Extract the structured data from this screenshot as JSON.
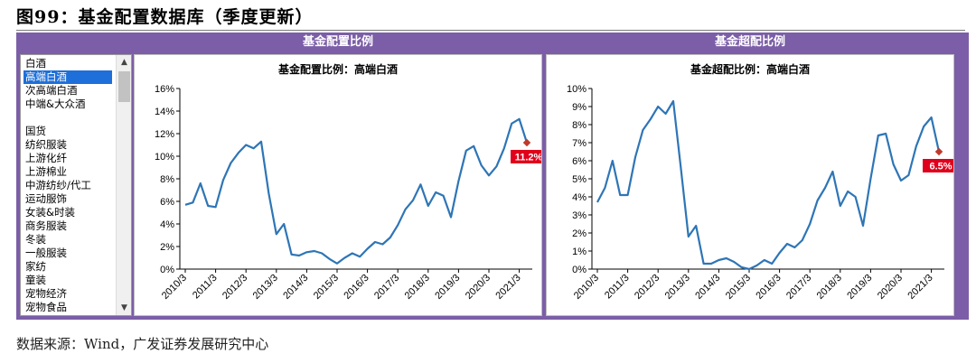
{
  "figure_title": "图99：基金配置数据库（季度更新）",
  "source": "数据来源：Wind，广发证券发展研究中心",
  "colors": {
    "frame": "#7B5EA7",
    "line": "#2E75B6",
    "label_bg": "#E0001B",
    "marker": "#C0392B",
    "selected": "#1E6FD9"
  },
  "left_panel_header": "基金配置比例",
  "right_panel_header": "基金超配比例",
  "listbox": {
    "items": [
      "白酒",
      "高端白酒",
      "次高端白酒",
      "中端&大众酒",
      "",
      "国货",
      "纺织服装",
      "上游化纤",
      "上游棉业",
      "中游纺纱/代工",
      "运动服饰",
      "女装&时装",
      "商务服装",
      "冬装",
      "一般服装",
      "家纺",
      "童装",
      "宠物经济",
      "宠物食品"
    ],
    "selected_index": 1
  },
  "chart_data": [
    {
      "type": "line",
      "title": "基金配置比例：高端白酒",
      "x": [
        "2010/3",
        "2010/6",
        "2010/9",
        "2010/12",
        "2011/3",
        "2011/6",
        "2011/9",
        "2011/12",
        "2012/3",
        "2012/6",
        "2012/9",
        "2012/12",
        "2013/3",
        "2013/6",
        "2013/9",
        "2013/12",
        "2014/3",
        "2014/6",
        "2014/9",
        "2014/12",
        "2015/3",
        "2015/6",
        "2015/9",
        "2015/12",
        "2016/3",
        "2016/6",
        "2016/9",
        "2016/12",
        "2017/3",
        "2017/6",
        "2017/9",
        "2017/12",
        "2018/3",
        "2018/6",
        "2018/9",
        "2018/12",
        "2019/3",
        "2019/6",
        "2019/9",
        "2019/12",
        "2020/3",
        "2020/6",
        "2020/9",
        "2020/12",
        "2021/3",
        "2021/6"
      ],
      "tick_labels": [
        "2010/3",
        "2011/3",
        "2012/3",
        "2013/3",
        "2014/3",
        "2015/3",
        "2016/3",
        "2017/3",
        "2018/3",
        "2019/3",
        "2020/3",
        "2021/3"
      ],
      "values": [
        5.7,
        5.9,
        7.6,
        5.6,
        5.5,
        7.9,
        9.4,
        10.3,
        11.0,
        10.7,
        11.3,
        6.7,
        3.1,
        4.0,
        1.3,
        1.2,
        1.5,
        1.6,
        1.4,
        0.9,
        0.5,
        1.0,
        1.4,
        1.1,
        1.8,
        2.4,
        2.2,
        2.8,
        3.9,
        5.3,
        6.1,
        7.5,
        5.6,
        6.8,
        6.5,
        4.6,
        7.8,
        10.5,
        10.9,
        9.2,
        8.3,
        9.1,
        10.7,
        12.9,
        13.3,
        11.2
      ],
      "ylim": [
        0,
        16
      ],
      "yticks": [
        "0%",
        "2%",
        "4%",
        "6%",
        "8%",
        "10%",
        "12%",
        "14%",
        "16%"
      ],
      "last_label": "11.2%"
    },
    {
      "type": "line",
      "title": "基金超配比例：高端白酒",
      "x": [
        "2010/3",
        "2010/6",
        "2010/9",
        "2010/12",
        "2011/3",
        "2011/6",
        "2011/9",
        "2011/12",
        "2012/3",
        "2012/6",
        "2012/9",
        "2012/12",
        "2013/3",
        "2013/6",
        "2013/9",
        "2013/12",
        "2014/3",
        "2014/6",
        "2014/9",
        "2014/12",
        "2015/3",
        "2015/6",
        "2015/9",
        "2015/12",
        "2016/3",
        "2016/6",
        "2016/9",
        "2016/12",
        "2017/3",
        "2017/6",
        "2017/9",
        "2017/12",
        "2018/3",
        "2018/6",
        "2018/9",
        "2018/12",
        "2019/3",
        "2019/6",
        "2019/9",
        "2019/12",
        "2020/3",
        "2020/6",
        "2020/9",
        "2020/12",
        "2021/3",
        "2021/6"
      ],
      "tick_labels": [
        "2010/3",
        "2011/3",
        "2012/3",
        "2013/3",
        "2014/3",
        "2015/3",
        "2016/3",
        "2017/3",
        "2018/3",
        "2019/3",
        "2020/3",
        "2021/3"
      ],
      "values": [
        3.7,
        4.5,
        6.0,
        4.1,
        4.1,
        6.2,
        7.7,
        8.3,
        9.0,
        8.6,
        9.3,
        5.6,
        1.8,
        2.4,
        0.3,
        0.3,
        0.5,
        0.6,
        0.4,
        0.1,
        -0.1,
        0.2,
        0.5,
        0.3,
        0.9,
        1.4,
        1.2,
        1.6,
        2.5,
        3.8,
        4.5,
        5.4,
        3.5,
        4.3,
        4.0,
        2.4,
        5.0,
        7.4,
        7.5,
        5.8,
        4.9,
        5.2,
        6.8,
        7.9,
        8.4,
        6.5
      ],
      "ylim": [
        0,
        10
      ],
      "yticks": [
        "0%",
        "1%",
        "2%",
        "3%",
        "4%",
        "5%",
        "6%",
        "7%",
        "8%",
        "9%",
        "10%"
      ],
      "last_label": "6.5%"
    }
  ]
}
